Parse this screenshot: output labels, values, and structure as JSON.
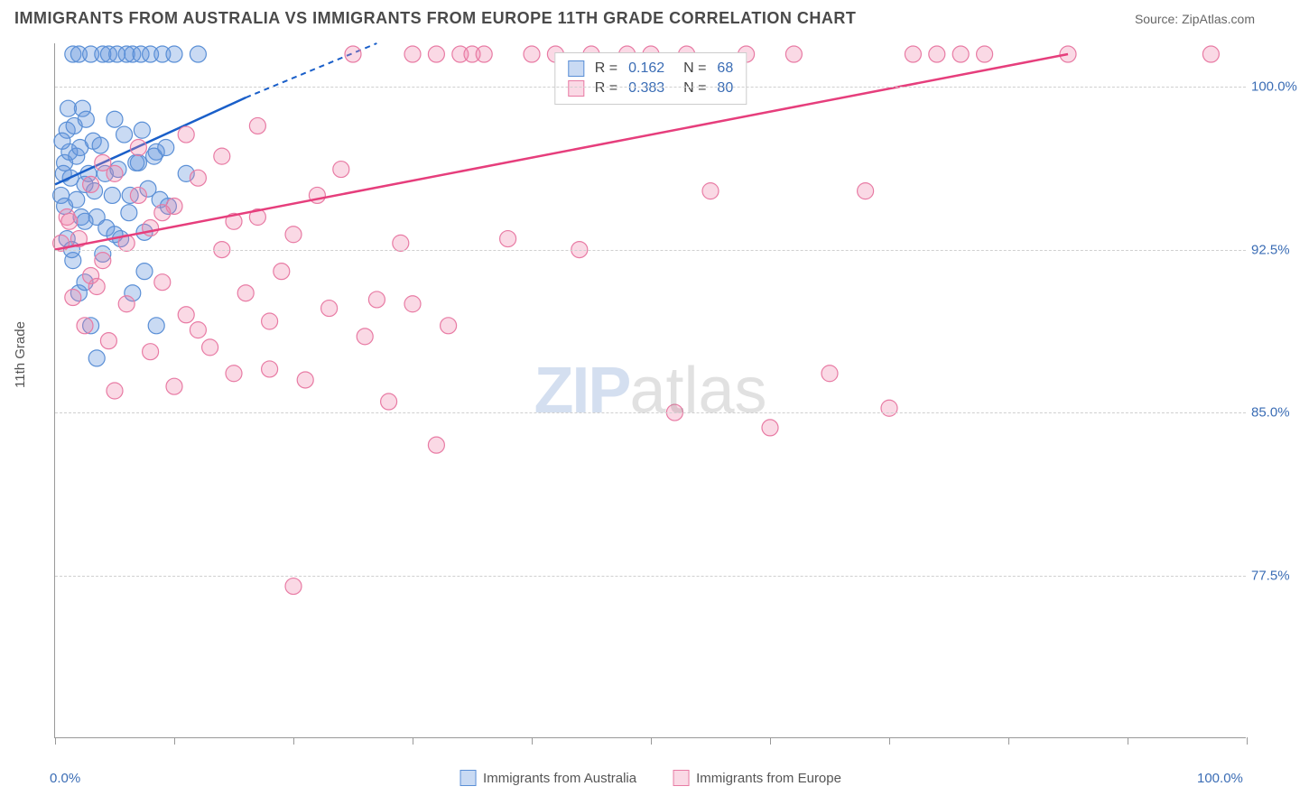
{
  "header": {
    "title": "IMMIGRANTS FROM AUSTRALIA VS IMMIGRANTS FROM EUROPE 11TH GRADE CORRELATION CHART",
    "source_prefix": "Source: ",
    "source_name": "ZipAtlas.com"
  },
  "chart": {
    "type": "scatter",
    "ylabel": "11th Grade",
    "xlim": [
      0,
      100
    ],
    "ylim": [
      70,
      102
    ],
    "x_ticks": [
      0,
      10,
      20,
      30,
      40,
      50,
      60,
      70,
      80,
      90,
      100
    ],
    "x_tick_labels": {
      "0": "0.0%",
      "100": "100.0%"
    },
    "y_ticks": [
      77.5,
      85.0,
      92.5,
      100.0
    ],
    "y_tick_labels": [
      "77.5%",
      "85.0%",
      "92.5%",
      "100.0%"
    ],
    "grid_color": "#d0d0d0",
    "background_color": "#ffffff",
    "axis_color": "#999999",
    "tick_label_color": "#3b6db5",
    "watermark": {
      "part1": "ZIP",
      "part2": "atlas"
    },
    "series": [
      {
        "name": "Immigrants from Australia",
        "color_fill": "rgba(100,150,220,0.35)",
        "color_stroke": "#5a8fd6",
        "trend_color": "#1a5fc9",
        "trend_dash_color": "#1a5fc9",
        "r_value": "0.162",
        "n_value": "68",
        "trend": {
          "x1": 0,
          "y1": 95.5,
          "x2": 16,
          "y2": 99.5,
          "x_dash_end": 27,
          "y_dash_end": 102
        },
        "points": [
          [
            0.5,
            95
          ],
          [
            0.8,
            96.5
          ],
          [
            1,
            98
          ],
          [
            1.2,
            97
          ],
          [
            1.5,
            101.5
          ],
          [
            2,
            101.5
          ],
          [
            2.3,
            99
          ],
          [
            2.5,
            95.5
          ],
          [
            3,
            101.5
          ],
          [
            3.2,
            97.5
          ],
          [
            3.5,
            94
          ],
          [
            4,
            101.5
          ],
          [
            4.2,
            96
          ],
          [
            4.5,
            101.5
          ],
          [
            5,
            98.5
          ],
          [
            5.2,
            101.5
          ],
          [
            5.5,
            93
          ],
          [
            6,
            101.5
          ],
          [
            6.3,
            95
          ],
          [
            6.5,
            101.5
          ],
          [
            7,
            96.5
          ],
          [
            7.2,
            101.5
          ],
          [
            7.5,
            91.5
          ],
          [
            8,
            101.5
          ],
          [
            8.5,
            97
          ],
          [
            9,
            101.5
          ],
          [
            9.5,
            94.5
          ],
          [
            10,
            101.5
          ],
          [
            11,
            96
          ],
          [
            12,
            101.5
          ],
          [
            1,
            93
          ],
          [
            1.5,
            92
          ],
          [
            2,
            90.5
          ],
          [
            2.5,
            91
          ],
          [
            3,
            89
          ],
          [
            0.8,
            94.5
          ],
          [
            1.3,
            95.8
          ],
          [
            1.8,
            96.8
          ],
          [
            2.2,
            94
          ],
          [
            2.8,
            96
          ],
          [
            3.3,
            95.2
          ],
          [
            3.8,
            97.3
          ],
          [
            4.3,
            93.5
          ],
          [
            4.8,
            95
          ],
          [
            5.3,
            96.2
          ],
          [
            5.8,
            97.8
          ],
          [
            6.2,
            94.2
          ],
          [
            6.8,
            96.5
          ],
          [
            7.3,
            98
          ],
          [
            7.8,
            95.3
          ],
          [
            8.3,
            96.8
          ],
          [
            8.8,
            94.8
          ],
          [
            9.3,
            97.2
          ],
          [
            0.6,
            97.5
          ],
          [
            1.1,
            99
          ],
          [
            1.6,
            98.2
          ],
          [
            2.1,
            97.2
          ],
          [
            2.6,
            98.5
          ],
          [
            1.4,
            92.5
          ],
          [
            3.5,
            87.5
          ],
          [
            6.5,
            90.5
          ],
          [
            8.5,
            89
          ],
          [
            4,
            92.3
          ],
          [
            5,
            93.2
          ],
          [
            2.5,
            93.8
          ],
          [
            1.8,
            94.8
          ],
          [
            0.7,
            96
          ],
          [
            7.5,
            93.3
          ]
        ]
      },
      {
        "name": "Immigrants from Europe",
        "color_fill": "rgba(240,130,170,0.3)",
        "color_stroke": "#e87ba4",
        "trend_color": "#e63e7c",
        "r_value": "0.383",
        "n_value": "80",
        "trend": {
          "x1": 0,
          "y1": 92.5,
          "x2": 85,
          "y2": 101.5
        },
        "points": [
          [
            1,
            94
          ],
          [
            2,
            93
          ],
          [
            3,
            95.5
          ],
          [
            4,
            92
          ],
          [
            5,
            96
          ],
          [
            6,
            90
          ],
          [
            7,
            95
          ],
          [
            8,
            93.5
          ],
          [
            9,
            91
          ],
          [
            10,
            94.5
          ],
          [
            11,
            89.5
          ],
          [
            12,
            95.8
          ],
          [
            13,
            88
          ],
          [
            14,
            92.5
          ],
          [
            15,
            93.8
          ],
          [
            16,
            90.5
          ],
          [
            17,
            94
          ],
          [
            18,
            87
          ],
          [
            19,
            91.5
          ],
          [
            20,
            93.2
          ],
          [
            21,
            86.5
          ],
          [
            22,
            95
          ],
          [
            23,
            89.8
          ],
          [
            24,
            96.2
          ],
          [
            25,
            101.5
          ],
          [
            26,
            88.5
          ],
          [
            27,
            90.2
          ],
          [
            28,
            85.5
          ],
          [
            29,
            92.8
          ],
          [
            30,
            101.5
          ],
          [
            32,
            101.5
          ],
          [
            33,
            89
          ],
          [
            34,
            101.5
          ],
          [
            35,
            101.5
          ],
          [
            36,
            101.5
          ],
          [
            38,
            93
          ],
          [
            40,
            101.5
          ],
          [
            42,
            101.5
          ],
          [
            44,
            92.5
          ],
          [
            45,
            101.5
          ],
          [
            48,
            101.5
          ],
          [
            50,
            101.5
          ],
          [
            52,
            85
          ],
          [
            53,
            101.5
          ],
          [
            55,
            95.2
          ],
          [
            58,
            101.5
          ],
          [
            60,
            84.3
          ],
          [
            62,
            101.5
          ],
          [
            65,
            86.8
          ],
          [
            68,
            95.2
          ],
          [
            70,
            85.2
          ],
          [
            72,
            101.5
          ],
          [
            74,
            101.5
          ],
          [
            76,
            101.5
          ],
          [
            78,
            101.5
          ],
          [
            85,
            101.5
          ],
          [
            97,
            101.5
          ],
          [
            20,
            77
          ],
          [
            32,
            83.5
          ],
          [
            5,
            86
          ],
          [
            8,
            87.8
          ],
          [
            10,
            86.2
          ],
          [
            12,
            88.8
          ],
          [
            3,
            91.3
          ],
          [
            15,
            86.8
          ],
          [
            18,
            89.2
          ],
          [
            6,
            92.8
          ],
          [
            9,
            94.2
          ],
          [
            4,
            96.5
          ],
          [
            7,
            97.2
          ],
          [
            11,
            97.8
          ],
          [
            14,
            96.8
          ],
          [
            17,
            98.2
          ],
          [
            1.5,
            90.3
          ],
          [
            2.5,
            89
          ],
          [
            0.5,
            92.8
          ],
          [
            1.2,
            93.8
          ],
          [
            3.5,
            90.8
          ],
          [
            4.5,
            88.3
          ],
          [
            30,
            90
          ]
        ]
      }
    ],
    "bottom_legend": [
      {
        "label": "Immigrants from Australia",
        "fill": "rgba(100,150,220,0.35)",
        "stroke": "#5a8fd6"
      },
      {
        "label": "Immigrants from Europe",
        "fill": "rgba(240,130,170,0.3)",
        "stroke": "#e87ba4"
      }
    ],
    "corr_legend_labels": {
      "r": "R =",
      "n": "N ="
    }
  }
}
